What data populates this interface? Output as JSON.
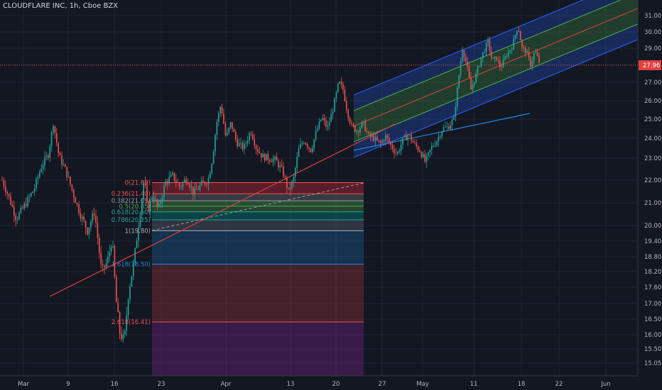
{
  "header": {
    "title": "CLOUDFLARE INC, 1h, Cboe BZX"
  },
  "colors": {
    "background": "#131722",
    "grid": "#1f2431",
    "axis_text": "#b2b5be",
    "candle_up": "#26a69a",
    "candle_down": "#ef5350",
    "trend_line": "#e0413f",
    "channel_blue": "#2962ff",
    "channel_green": "#4caf50",
    "price_line": "#e0413f",
    "price_badge": "#e0413f",
    "fib_blue_line": "#1e88e5"
  },
  "chart_data": {
    "type": "candlestick",
    "title": "CLOUDFLARE INC, 1h, Cboe BZX",
    "x_tick_labels": [
      "Mar",
      "9",
      "16",
      "23",
      "Apr",
      "13",
      "20",
      "27",
      "May",
      "11",
      "18",
      "22",
      "Jun"
    ],
    "y_tick_labels": [
      "31.00",
      "30.00",
      "29.00",
      "28.00",
      "27.00",
      "26.00",
      "25.00",
      "24.00",
      "23.00",
      "22.00",
      "21.00",
      "20.00",
      "19.40",
      "18.80",
      "18.20",
      "17.60",
      "17.00",
      "16.50",
      "16.00",
      "15.50",
      "15.05"
    ],
    "current_price": "27.96",
    "ylim": [
      14.8,
      31.5
    ],
    "fib_levels": [
      {
        "label": "0(21.89)",
        "value": 21.89
      },
      {
        "label": "0.236(21.40)",
        "value": 21.4
      },
      {
        "label": "0.382(21.09)",
        "value": 21.09
      },
      {
        "label": "0.5(20.85)",
        "value": 20.85
      },
      {
        "label": "0.618(20.60)",
        "value": 20.6
      },
      {
        "label": "0.786(20.25)",
        "value": 20.25
      },
      {
        "label": "1(19.80)",
        "value": 19.8
      },
      {
        "label": "1.618(18.50)",
        "value": 18.5
      },
      {
        "label": "2.618(16.41)",
        "value": 16.41
      }
    ],
    "price_path": [
      [
        0,
        22.0
      ],
      [
        10,
        21.2
      ],
      [
        20,
        20.3
      ],
      [
        30,
        20.8
      ],
      [
        45,
        21.6
      ],
      [
        55,
        22.6
      ],
      [
        65,
        23.2
      ],
      [
        72,
        24.8
      ],
      [
        80,
        23.1
      ],
      [
        90,
        22.4
      ],
      [
        100,
        21.4
      ],
      [
        110,
        20.5
      ],
      [
        120,
        19.8
      ],
      [
        130,
        20.6
      ],
      [
        140,
        18.2
      ],
      [
        148,
        18.6
      ],
      [
        155,
        19.5
      ],
      [
        160,
        17.2
      ],
      [
        166,
        16.0
      ],
      [
        172,
        15.8
      ],
      [
        178,
        17.4
      ],
      [
        185,
        18.5
      ],
      [
        190,
        19.6
      ],
      [
        196,
        21.0
      ],
      [
        200,
        22.1
      ],
      [
        205,
        20.6
      ],
      [
        212,
        21.4
      ],
      [
        220,
        20.7
      ],
      [
        230,
        21.9
      ],
      [
        240,
        22.2
      ],
      [
        250,
        21.7
      ],
      [
        260,
        22.1
      ],
      [
        270,
        21.4
      ],
      [
        280,
        21.8
      ],
      [
        290,
        22.0
      ],
      [
        296,
        23.0
      ],
      [
        302,
        24.8
      ],
      [
        308,
        25.8
      ],
      [
        315,
        24.0
      ],
      [
        322,
        24.8
      ],
      [
        330,
        23.8
      ],
      [
        340,
        23.5
      ],
      [
        350,
        24.4
      ],
      [
        358,
        23.5
      ],
      [
        366,
        23.1
      ],
      [
        375,
        23.0
      ],
      [
        385,
        22.9
      ],
      [
        395,
        22.4
      ],
      [
        403,
        21.5
      ],
      [
        410,
        22.0
      ],
      [
        418,
        23.5
      ],
      [
        425,
        23.9
      ],
      [
        435,
        23.4
      ],
      [
        442,
        24.3
      ],
      [
        450,
        25.1
      ],
      [
        458,
        24.5
      ],
      [
        466,
        25.6
      ],
      [
        474,
        27.0
      ],
      [
        480,
        26.6
      ],
      [
        486,
        25.4
      ],
      [
        492,
        24.6
      ],
      [
        500,
        24.4
      ],
      [
        508,
        24.8
      ],
      [
        516,
        24.1
      ],
      [
        524,
        24.0
      ],
      [
        532,
        23.7
      ],
      [
        540,
        24.1
      ],
      [
        548,
        23.6
      ],
      [
        556,
        23.2
      ],
      [
        564,
        23.9
      ],
      [
        572,
        24.2
      ],
      [
        580,
        23.7
      ],
      [
        588,
        23.4
      ],
      [
        596,
        22.8
      ],
      [
        604,
        23.5
      ],
      [
        612,
        23.9
      ],
      [
        620,
        24.5
      ],
      [
        628,
        24.6
      ],
      [
        636,
        25.0
      ],
      [
        642,
        27.0
      ],
      [
        648,
        29.0
      ],
      [
        654,
        28.0
      ],
      [
        660,
        26.6
      ],
      [
        668,
        27.5
      ],
      [
        676,
        28.6
      ],
      [
        684,
        29.4
      ],
      [
        690,
        28.2
      ],
      [
        696,
        28.4
      ],
      [
        702,
        27.8
      ],
      [
        710,
        28.6
      ],
      [
        718,
        29.1
      ],
      [
        726,
        30.4
      ],
      [
        732,
        29.0
      ],
      [
        738,
        28.8
      ],
      [
        744,
        28.0
      ],
      [
        750,
        28.8
      ],
      [
        758,
        27.96
      ]
    ]
  }
}
